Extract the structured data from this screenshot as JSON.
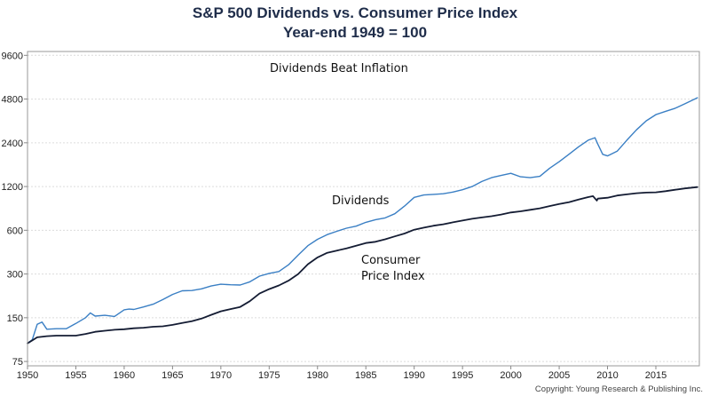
{
  "chart_data": {
    "type": "line",
    "title": "S&P 500 Dividends vs. Consumer Price Index",
    "subtitle": "Year-end 1949 = 100",
    "xlabel": "",
    "ylabel": "",
    "y_scale": "log",
    "xlim": [
      1950,
      2019.5
    ],
    "ylim": [
      70,
      10200
    ],
    "x_ticks": [
      "1950",
      "1955",
      "1960",
      "1965",
      "1970",
      "1975",
      "1980",
      "1985",
      "1990",
      "1995",
      "2000",
      "2005",
      "2010",
      "2015"
    ],
    "y_ticks": [
      "75",
      "150",
      "300",
      "600",
      "1200",
      "2400",
      "4800",
      "9600"
    ],
    "grid": "horizontal",
    "annotations": {
      "headline": "Dividends Beat Inflation",
      "dividends_label": "Dividends",
      "cpi_label_line1": "Consumer",
      "cpi_label_line2": "Price Index"
    },
    "copyright": "Copyright: Young Research & Publishing Inc.",
    "series": [
      {
        "key": "dividends",
        "color": "#3a7fc4",
        "x": [
          1950,
          1950.5,
          1951,
          1951.5,
          1952,
          1953,
          1954,
          1955,
          1956,
          1956.5,
          1957,
          1958,
          1959,
          1960,
          1960.5,
          1961,
          1962,
          1963,
          1964,
          1965,
          1966,
          1967,
          1968,
          1969,
          1970,
          1971,
          1972,
          1973,
          1974,
          1975,
          1976,
          1977,
          1978,
          1979,
          1980,
          1981,
          1982,
          1983,
          1984,
          1985,
          1986,
          1987,
          1988,
          1989,
          1990,
          1991,
          1992,
          1993,
          1994,
          1995,
          1996,
          1997,
          1998,
          1999,
          2000,
          2001,
          2002,
          2003,
          2004,
          2005,
          2006,
          2007,
          2008,
          2008.7,
          2009,
          2009.5,
          2010,
          2011,
          2012,
          2013,
          2014,
          2015,
          2016,
          2017,
          2018,
          2019.3
        ],
        "values": [
          100,
          106,
          135,
          140,
          125,
          126,
          126,
          137,
          150,
          162,
          154,
          156,
          153,
          170,
          172,
          171,
          178,
          186,
          200,
          217,
          230,
          231,
          237,
          248,
          255,
          253,
          252,
          265,
          290,
          303,
          312,
          347,
          405,
          470,
          520,
          560,
          590,
          620,
          640,
          680,
          710,
          730,
          780,
          880,
          1010,
          1050,
          1060,
          1070,
          1100,
          1140,
          1200,
          1300,
          1380,
          1430,
          1480,
          1400,
          1380,
          1410,
          1600,
          1780,
          2000,
          2250,
          2500,
          2600,
          2350,
          2000,
          1950,
          2100,
          2500,
          2950,
          3400,
          3750,
          3950,
          4150,
          4450,
          4900
        ]
      },
      {
        "key": "cpi",
        "color": "#141c33",
        "x": [
          1950,
          1951,
          1952,
          1953,
          1954,
          1955,
          1956,
          1957,
          1958,
          1959,
          1960,
          1961,
          1962,
          1963,
          1964,
          1965,
          1966,
          1967,
          1968,
          1969,
          1970,
          1971,
          1972,
          1973,
          1974,
          1975,
          1976,
          1977,
          1978,
          1979,
          1980,
          1981,
          1982,
          1983,
          1984,
          1985,
          1986,
          1987,
          1988,
          1989,
          1990,
          1991,
          1992,
          1993,
          1994,
          1995,
          1996,
          1997,
          1998,
          1999,
          2000,
          2001,
          2002,
          2003,
          2004,
          2005,
          2006,
          2007,
          2008,
          2008.5,
          2008.9,
          2009,
          2010,
          2011,
          2012,
          2013,
          2014,
          2015,
          2016,
          2017,
          2018,
          2019.3
        ],
        "values": [
          100,
          110,
          112,
          113,
          113,
          113,
          116,
          120,
          122,
          124,
          125,
          127,
          128,
          130,
          131,
          134,
          138,
          142,
          148,
          157,
          166,
          172,
          178,
          195,
          220,
          236,
          250,
          270,
          300,
          350,
          390,
          420,
          435,
          450,
          470,
          490,
          500,
          520,
          545,
          570,
          605,
          625,
          645,
          660,
          680,
          700,
          720,
          735,
          750,
          770,
          795,
          810,
          830,
          850,
          880,
          910,
          935,
          975,
          1015,
          1030,
          960,
          990,
          1005,
          1040,
          1060,
          1080,
          1090,
          1095,
          1115,
          1140,
          1165,
          1190
        ]
      }
    ]
  }
}
